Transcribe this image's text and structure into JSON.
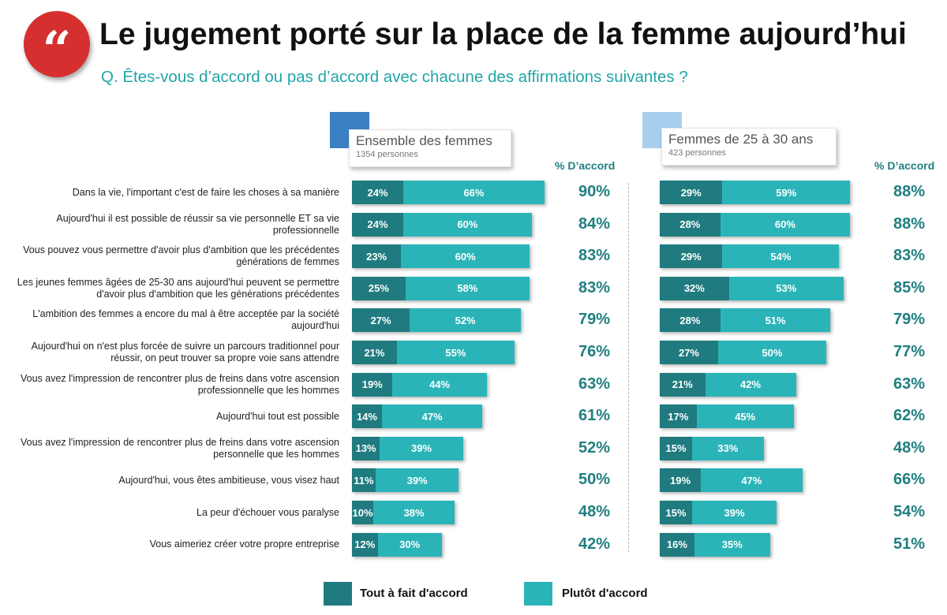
{
  "header": {
    "quote_glyph": "“",
    "title": "Le jugement porté sur la place de la femme aujourd’hui",
    "question": "Q. Êtes-vous d’accord ou pas d’accord avec chacune des affirmations suivantes ?"
  },
  "colors": {
    "tout": "#1f7b7f",
    "plutot": "#2bb4b8",
    "accent": "#d62f2f",
    "panel1": "#3b7fc4",
    "panel2": "#a9cfee"
  },
  "chart_data": {
    "type": "bar",
    "stacked": true,
    "orientation": "horizontal",
    "title": "Le jugement porté sur la place de la femme aujourd’hui",
    "subtitle": "Q. Êtes-vous d’accord ou pas d’accord avec chacune des affirmations suivantes ?",
    "total_label": "% D’accord",
    "legend": [
      "Tout à fait d'accord",
      "Plutôt d'accord"
    ],
    "legend_position": "bottom",
    "categories": [
      "Dans la vie, l'important c'est de faire les choses à sa manière",
      "Aujourd'hui il est possible de réussir sa vie personnelle ET sa vie professionnelle",
      "Vous pouvez vous permettre d'avoir plus d'ambition que les précédentes générations de femmes",
      "Les jeunes femmes âgées de 25-30 ans aujourd'hui peuvent se permettre d'avoir plus d'ambition que les générations précédentes",
      "L'ambition des femmes a encore du mal à être acceptée par la société aujourd'hui",
      "Aujourd'hui on n'est plus forcée de suivre un parcours traditionnel pour réussir, on peut trouver sa propre voie sans attendre",
      "Vous avez l'impression de rencontrer plus de freins dans votre ascension professionnelle que les hommes",
      "Aujourd'hui tout est possible",
      "Vous avez l'impression de rencontrer plus de freins dans votre ascension personnelle que les hommes",
      "Aujourd'hui, vous êtes ambitieuse, vous visez haut",
      "La peur d'échouer vous paralyse",
      "Vous aimeriez créer votre propre entreprise"
    ],
    "panels": [
      {
        "name": "Ensemble des femmes",
        "count": "1354 personnes",
        "series": [
          {
            "name": "Tout à fait d'accord",
            "values": [
              24,
              24,
              23,
              25,
              27,
              21,
              19,
              14,
              13,
              11,
              10,
              12
            ]
          },
          {
            "name": "Plutôt d'accord",
            "values": [
              66,
              60,
              60,
              58,
              52,
              55,
              44,
              47,
              39,
              39,
              38,
              30
            ]
          }
        ],
        "totals": [
          90,
          84,
          83,
          83,
          79,
          76,
          63,
          61,
          52,
          50,
          48,
          42
        ]
      },
      {
        "name": "Femmes de 25 à 30 ans",
        "count": "423 personnes",
        "series": [
          {
            "name": "Tout à fait d'accord",
            "values": [
              29,
              28,
              29,
              32,
              28,
              27,
              21,
              17,
              15,
              19,
              15,
              16
            ]
          },
          {
            "name": "Plutôt d'accord",
            "values": [
              59,
              60,
              54,
              53,
              51,
              50,
              42,
              45,
              33,
              47,
              39,
              35
            ]
          }
        ],
        "totals": [
          88,
          88,
          83,
          85,
          79,
          77,
          63,
          62,
          48,
          66,
          54,
          51
        ]
      }
    ]
  }
}
